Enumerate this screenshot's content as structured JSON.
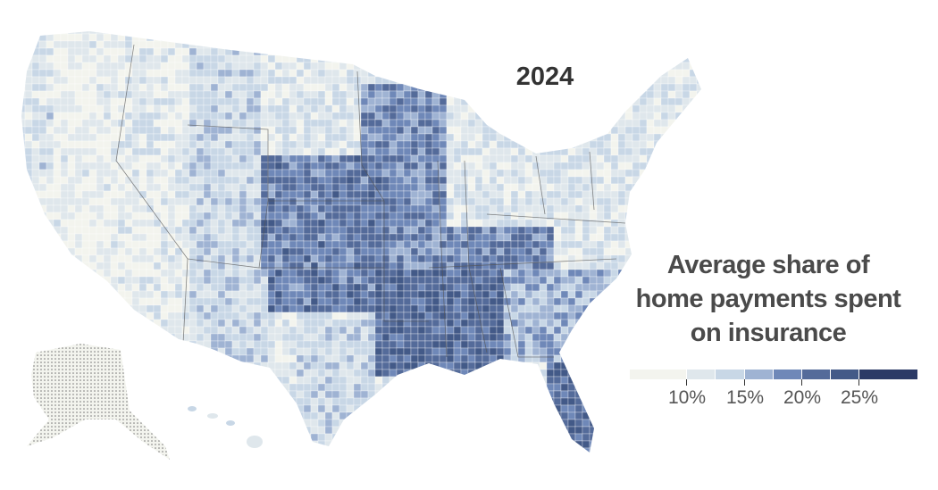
{
  "year": "2024",
  "legend": {
    "title_lines": [
      "Average share of",
      "home payments spent",
      "on insurance"
    ],
    "bins": [
      {
        "range": "< ~8%",
        "color": "#f3f4ee"
      },
      {
        "range": "~8–10%",
        "color": "#dfe7ec"
      },
      {
        "range": "10–15%",
        "color": "#c8d7e6"
      },
      {
        "range": "15–17.5%",
        "color": "#9fb3d3"
      },
      {
        "range": "17.5–20%",
        "color": "#6f88b8"
      },
      {
        "range": "20–22.5%",
        "color": "#546b9a"
      },
      {
        "range": "22.5–25%",
        "color": "#435a88"
      },
      {
        "range": "> 25%",
        "color": "#2b3a66"
      }
    ],
    "ticks": [
      "10%",
      "15%",
      "20%",
      "25%"
    ]
  },
  "colors": {
    "border": "#ffffff",
    "state_border": "#555555",
    "no_data_dots": "#777777"
  }
}
